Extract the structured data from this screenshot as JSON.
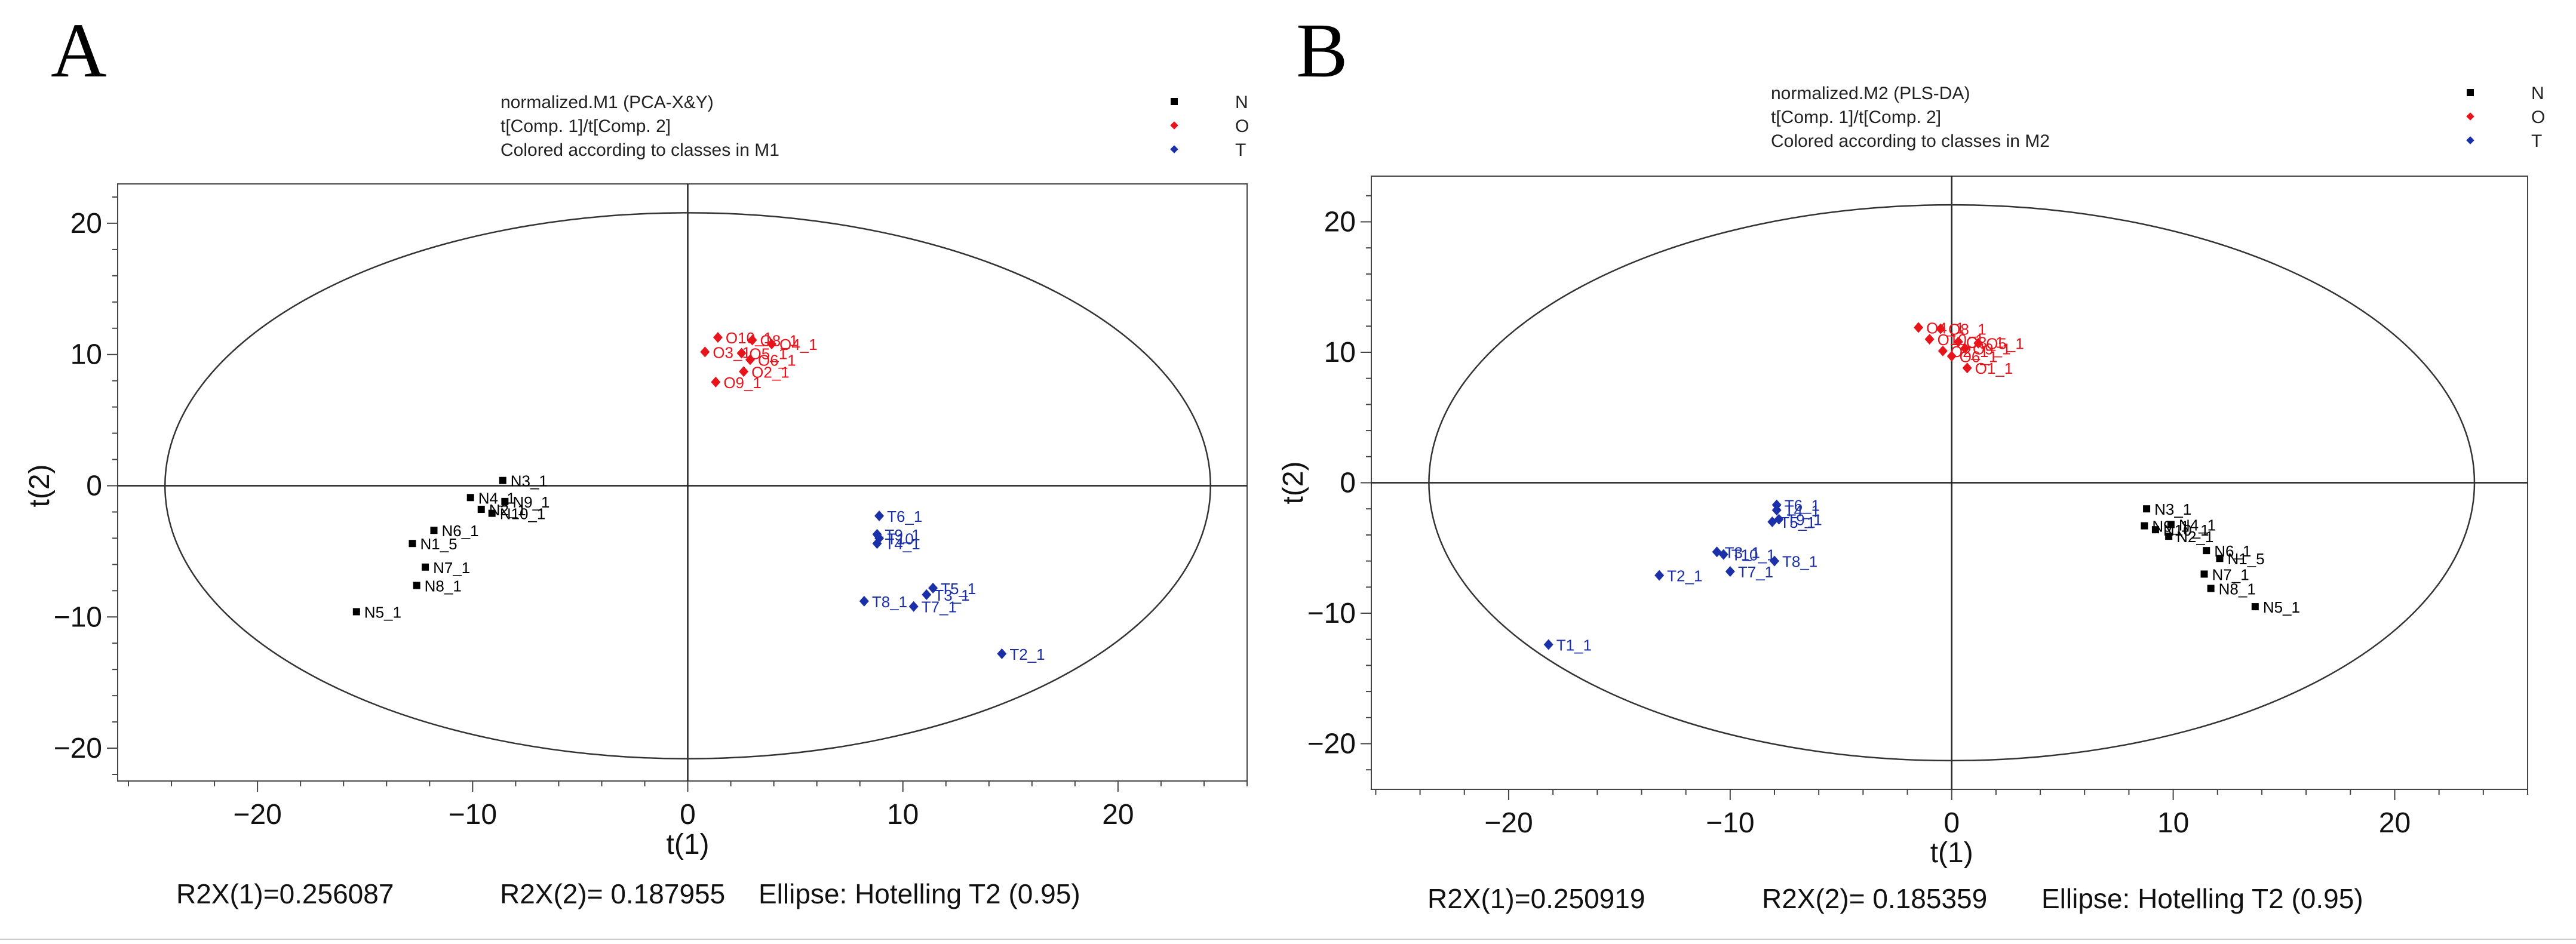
{
  "panels": [
    {
      "letter": "A",
      "header": [
        "normalized.M1 (PCA-X&Y)",
        "t[Comp. 1]/t[Comp. 2]",
        "Colored according to classes in M1"
      ],
      "footer": {
        "r2x1": "R2X(1)=0.256087",
        "r2x2": "R2X(2)= 0.187955",
        "ellipse": "Ellipse: Hotelling T2 (0.95)"
      }
    },
    {
      "letter": "B",
      "header": [
        "normalized.M2 (PLS-DA)",
        "t[Comp. 1]/t[Comp. 2]",
        "Colored according to classes in M2"
      ],
      "footer": {
        "r2x1": "R2X(1)=0.250919",
        "r2x2": "R2X(2)= 0.185359",
        "ellipse": "Ellipse: Hotelling T2 (0.95)"
      }
    }
  ],
  "legend": [
    {
      "name": "N",
      "color": "#000000",
      "marker": "square"
    },
    {
      "name": "O",
      "color": "#e8141c",
      "marker": "diamond"
    },
    {
      "name": "T",
      "color": "#1a2fa8",
      "marker": "diamond"
    }
  ],
  "chart_data": [
    {
      "type": "scatter",
      "title": "normalized.M1 (PCA-X&Y)",
      "xlabel": "t(1)",
      "ylabel": "t(2)",
      "xlim": [
        -26.5,
        26
      ],
      "ylim": [
        -22.5,
        23
      ],
      "xticks": [
        -20,
        -10,
        0,
        10,
        20
      ],
      "yticks": [
        -20,
        -10,
        0,
        10,
        20
      ],
      "tick_labels_x": [
        "−20",
        "−10",
        "0",
        "10",
        "20"
      ],
      "tick_labels_y": [
        "−20",
        "−10",
        "0",
        "10",
        "20"
      ],
      "ellipse": {
        "a": 24.3,
        "b": 20.8,
        "label": "Hotelling T2 (0.95)"
      },
      "series": [
        {
          "name": "N",
          "points": [
            {
              "label": "N3_1",
              "x": -8.6,
              "y": 0.4
            },
            {
              "label": "N4_1",
              "x": -10.1,
              "y": -0.9
            },
            {
              "label": "N9_1",
              "x": -8.5,
              "y": -1.2
            },
            {
              "label": "N2_1",
              "x": -9.6,
              "y": -1.8
            },
            {
              "label": "N10_1",
              "x": -9.1,
              "y": -2.1
            },
            {
              "label": "N6_1",
              "x": -11.8,
              "y": -3.4
            },
            {
              "label": "N1_5",
              "x": -12.8,
              "y": -4.4
            },
            {
              "label": "N7_1",
              "x": -12.2,
              "y": -6.2
            },
            {
              "label": "N8_1",
              "x": -12.6,
              "y": -7.6
            },
            {
              "label": "N5_1",
              "x": -15.4,
              "y": -9.6
            }
          ]
        },
        {
          "name": "O",
          "points": [
            {
              "label": "O10_1",
              "x": 1.4,
              "y": 11.3
            },
            {
              "label": "O8_1",
              "x": 3.0,
              "y": 11.1
            },
            {
              "label": "O4_1",
              "x": 3.9,
              "y": 10.8
            },
            {
              "label": "O3_1",
              "x": 0.8,
              "y": 10.2
            },
            {
              "label": "O5_1",
              "x": 2.5,
              "y": 10.1
            },
            {
              "label": "O6_1",
              "x": 2.9,
              "y": 9.6
            },
            {
              "label": "O2_1",
              "x": 2.6,
              "y": 8.7
            },
            {
              "label": "O9_1",
              "x": 1.3,
              "y": 7.9
            }
          ]
        },
        {
          "name": "T",
          "points": [
            {
              "label": "T6_1",
              "x": 8.9,
              "y": -2.3
            },
            {
              "label": "T9_1",
              "x": 8.8,
              "y": -3.7
            },
            {
              "label": "T10",
              "x": 8.9,
              "y": -4.0
            },
            {
              "label": "T4_1",
              "x": 8.8,
              "y": -4.4
            },
            {
              "label": "T5_1",
              "x": 11.4,
              "y": -7.8
            },
            {
              "label": "T3_1",
              "x": 11.1,
              "y": -8.3
            },
            {
              "label": "T8_1",
              "x": 8.2,
              "y": -8.8
            },
            {
              "label": "T7_1",
              "x": 10.5,
              "y": -9.2
            },
            {
              "label": "T2_1",
              "x": 14.6,
              "y": -12.8
            }
          ]
        }
      ]
    },
    {
      "type": "scatter",
      "title": "normalized.M2 (PLS-DA)",
      "xlabel": "t(1)",
      "ylabel": "t(2)",
      "xlim": [
        -26.2,
        26
      ],
      "ylim": [
        -23.5,
        23.5
      ],
      "xticks": [
        -20,
        -10,
        0,
        10,
        20
      ],
      "yticks": [
        -20,
        -10,
        0,
        10,
        20
      ],
      "tick_labels_x": [
        "−20",
        "−10",
        "0",
        "10",
        "20"
      ],
      "tick_labels_y": [
        "−20",
        "−10",
        "0",
        "10",
        "20"
      ],
      "ellipse": {
        "a": 23.6,
        "b": 21.3,
        "label": "Hotelling T2 (0.95)"
      },
      "series": [
        {
          "name": "N",
          "points": [
            {
              "label": "N3_1",
              "x": 8.8,
              "y": -2.0
            },
            {
              "label": "N9_1",
              "x": 8.7,
              "y": -3.3
            },
            {
              "label": "N4_1",
              "x": 9.9,
              "y": -3.2
            },
            {
              "label": "N10_1",
              "x": 9.2,
              "y": -3.6
            },
            {
              "label": "N2_1",
              "x": 9.8,
              "y": -4.1
            },
            {
              "label": "N6_1",
              "x": 11.5,
              "y": -5.2
            },
            {
              "label": "N1_5",
              "x": 12.1,
              "y": -5.8
            },
            {
              "label": "N7_1",
              "x": 11.4,
              "y": -7.0
            },
            {
              "label": "N8_1",
              "x": 11.7,
              "y": -8.1
            },
            {
              "label": "N5_1",
              "x": 13.7,
              "y": -9.5
            }
          ]
        },
        {
          "name": "O",
          "points": [
            {
              "label": "O4_1",
              "x": -1.5,
              "y": 11.9
            },
            {
              "label": "O8_1",
              "x": -0.5,
              "y": 11.8
            },
            {
              "label": "O10_1",
              "x": -1.0,
              "y": 11.0
            },
            {
              "label": "O3_1",
              "x": 0.3,
              "y": 10.8
            },
            {
              "label": "O5_1",
              "x": 1.2,
              "y": 10.7
            },
            {
              "label": "O9_1",
              "x": 0.6,
              "y": 10.3
            },
            {
              "label": "O2_1",
              "x": -0.4,
              "y": 10.1
            },
            {
              "label": "O6_1",
              "x": 0.0,
              "y": 9.7
            },
            {
              "label": "O1_1",
              "x": 0.7,
              "y": 8.8
            }
          ]
        },
        {
          "name": "T",
          "points": [
            {
              "label": "T6_1",
              "x": -7.9,
              "y": -1.7
            },
            {
              "label": "T4_1",
              "x": -7.9,
              "y": -2.1
            },
            {
              "label": "T9_1",
              "x": -7.8,
              "y": -2.8
            },
            {
              "label": "T5_1",
              "x": -8.1,
              "y": -3.0
            },
            {
              "label": "T3_1",
              "x": -10.6,
              "y": -5.3
            },
            {
              "label": "T10_1",
              "x": -10.3,
              "y": -5.5
            },
            {
              "label": "T8_1",
              "x": -8.0,
              "y": -6.0
            },
            {
              "label": "T7_1",
              "x": -10.0,
              "y": -6.8
            },
            {
              "label": "T2_1",
              "x": -13.2,
              "y": -7.1
            },
            {
              "label": "T1_1",
              "x": -18.2,
              "y": -12.4
            }
          ]
        }
      ]
    }
  ]
}
